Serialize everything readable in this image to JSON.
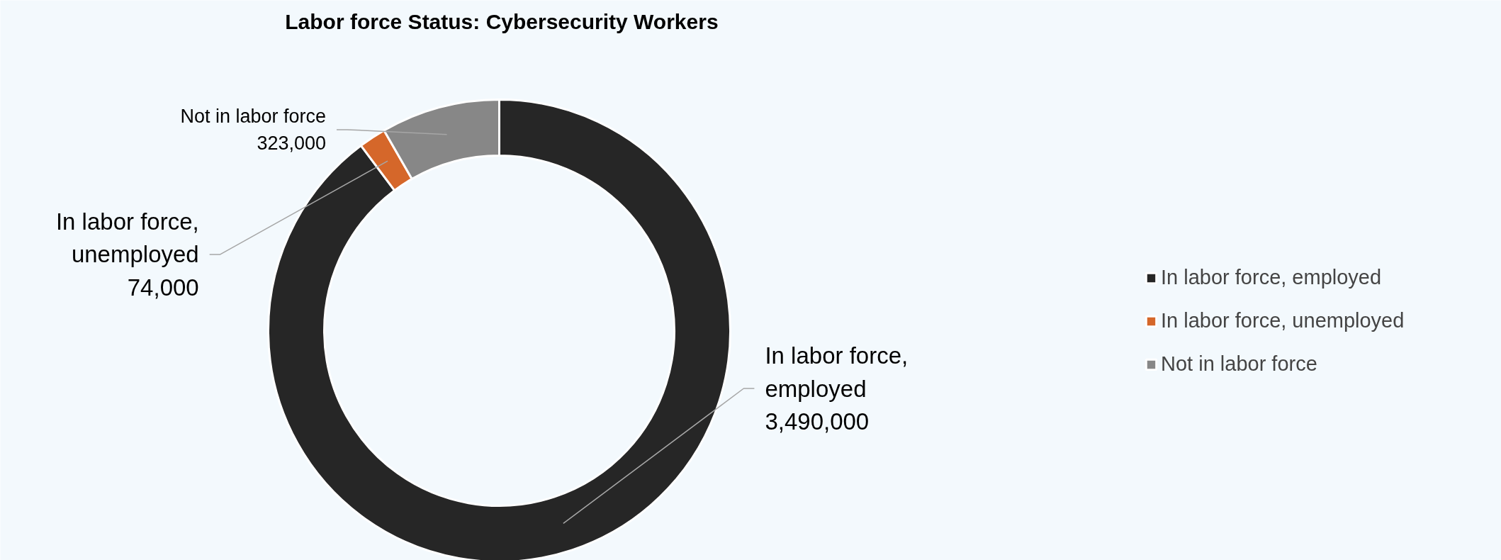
{
  "chart_data": {
    "type": "donut",
    "title": "Labor force Status: Cybersecurity Workers",
    "categories": [
      "In labor force, employed",
      "In labor force, unemployed",
      "Not in labor force"
    ],
    "values": [
      3490000,
      74000,
      323000
    ],
    "colors": [
      "#262626",
      "#d5672a",
      "#878787"
    ],
    "value_labels": [
      "3,490,000",
      "74,000",
      "323,000"
    ],
    "legend": "right"
  }
}
